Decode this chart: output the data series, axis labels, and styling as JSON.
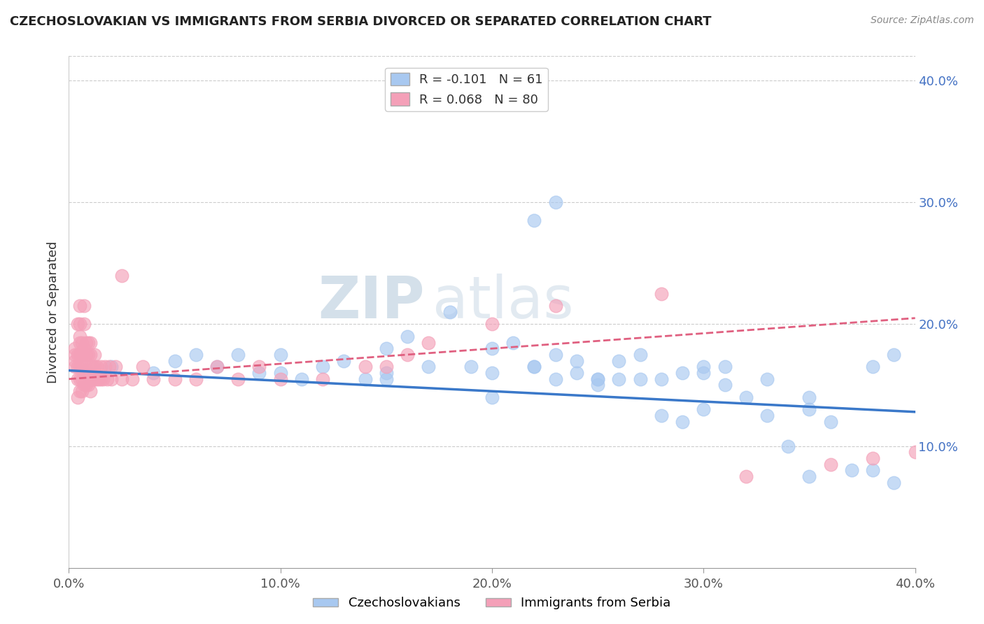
{
  "title": "CZECHOSLOVAKIAN VS IMMIGRANTS FROM SERBIA DIVORCED OR SEPARATED CORRELATION CHART",
  "source": "Source: ZipAtlas.com",
  "ylabel": "Divorced or Separated",
  "xlabel": "",
  "watermark": "ZIPatlas",
  "legend1_r": "-0.101",
  "legend1_n": "61",
  "legend2_r": "0.068",
  "legend2_n": "80",
  "blue_color": "#A8C8F0",
  "pink_color": "#F4A0B8",
  "blue_line_color": "#3A78C9",
  "pink_line_color": "#E06080",
  "xlim": [
    0.0,
    0.4
  ],
  "ylim": [
    0.0,
    0.42
  ],
  "x_ticks": [
    0.0,
    0.1,
    0.2,
    0.3,
    0.4
  ],
  "x_tick_labels": [
    "0.0%",
    "10.0%",
    "20.0%",
    "30.0%",
    "40.0%"
  ],
  "y_ticks_right": [
    0.1,
    0.2,
    0.3,
    0.4
  ],
  "y_tick_labels_right": [
    "10.0%",
    "20.0%",
    "30.0%",
    "40.0%"
  ],
  "blue_x": [
    0.02,
    0.04,
    0.05,
    0.06,
    0.07,
    0.08,
    0.09,
    0.1,
    0.1,
    0.11,
    0.12,
    0.13,
    0.14,
    0.15,
    0.15,
    0.16,
    0.17,
    0.18,
    0.19,
    0.2,
    0.2,
    0.21,
    0.22,
    0.22,
    0.23,
    0.23,
    0.24,
    0.24,
    0.25,
    0.25,
    0.26,
    0.26,
    0.27,
    0.27,
    0.28,
    0.28,
    0.29,
    0.29,
    0.3,
    0.3,
    0.31,
    0.31,
    0.32,
    0.33,
    0.33,
    0.34,
    0.35,
    0.35,
    0.36,
    0.37,
    0.38,
    0.38,
    0.39,
    0.39,
    0.22,
    0.23,
    0.15,
    0.2,
    0.25,
    0.3,
    0.35
  ],
  "blue_y": [
    0.165,
    0.16,
    0.17,
    0.175,
    0.165,
    0.175,
    0.16,
    0.175,
    0.16,
    0.155,
    0.165,
    0.17,
    0.155,
    0.18,
    0.16,
    0.19,
    0.165,
    0.21,
    0.165,
    0.18,
    0.14,
    0.185,
    0.165,
    0.285,
    0.175,
    0.3,
    0.16,
    0.17,
    0.15,
    0.155,
    0.155,
    0.17,
    0.155,
    0.175,
    0.155,
    0.125,
    0.16,
    0.12,
    0.13,
    0.165,
    0.15,
    0.165,
    0.14,
    0.125,
    0.155,
    0.1,
    0.13,
    0.14,
    0.12,
    0.08,
    0.165,
    0.08,
    0.175,
    0.07,
    0.165,
    0.155,
    0.155,
    0.16,
    0.155,
    0.16,
    0.075
  ],
  "pink_x": [
    0.003,
    0.003,
    0.003,
    0.003,
    0.004,
    0.004,
    0.004,
    0.004,
    0.004,
    0.005,
    0.005,
    0.005,
    0.005,
    0.005,
    0.005,
    0.005,
    0.005,
    0.006,
    0.006,
    0.006,
    0.006,
    0.006,
    0.007,
    0.007,
    0.007,
    0.007,
    0.007,
    0.007,
    0.008,
    0.008,
    0.008,
    0.008,
    0.009,
    0.009,
    0.009,
    0.009,
    0.01,
    0.01,
    0.01,
    0.01,
    0.01,
    0.011,
    0.011,
    0.012,
    0.012,
    0.012,
    0.013,
    0.013,
    0.014,
    0.015,
    0.015,
    0.016,
    0.017,
    0.018,
    0.019,
    0.02,
    0.022,
    0.025,
    0.025,
    0.03,
    0.035,
    0.04,
    0.05,
    0.06,
    0.07,
    0.08,
    0.09,
    0.1,
    0.12,
    0.14,
    0.15,
    0.16,
    0.17,
    0.2,
    0.23,
    0.28,
    0.32,
    0.36,
    0.38,
    0.4
  ],
  "pink_y": [
    0.165,
    0.17,
    0.175,
    0.18,
    0.14,
    0.155,
    0.165,
    0.175,
    0.2,
    0.145,
    0.155,
    0.165,
    0.175,
    0.185,
    0.19,
    0.2,
    0.215,
    0.145,
    0.155,
    0.165,
    0.175,
    0.185,
    0.15,
    0.16,
    0.17,
    0.18,
    0.2,
    0.215,
    0.15,
    0.16,
    0.175,
    0.185,
    0.15,
    0.16,
    0.175,
    0.185,
    0.145,
    0.155,
    0.165,
    0.175,
    0.185,
    0.155,
    0.165,
    0.155,
    0.165,
    0.175,
    0.155,
    0.165,
    0.155,
    0.155,
    0.165,
    0.155,
    0.165,
    0.155,
    0.165,
    0.155,
    0.165,
    0.155,
    0.24,
    0.155,
    0.165,
    0.155,
    0.155,
    0.155,
    0.165,
    0.155,
    0.165,
    0.155,
    0.155,
    0.165,
    0.165,
    0.175,
    0.185,
    0.2,
    0.215,
    0.225,
    0.075,
    0.085,
    0.09,
    0.095
  ]
}
